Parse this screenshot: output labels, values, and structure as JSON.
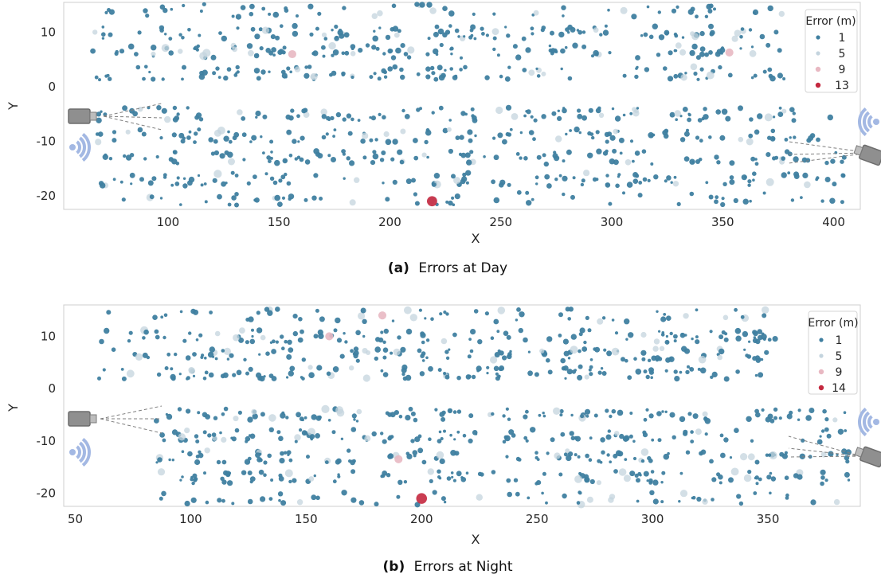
{
  "colors": {
    "err_low": "#3f7fa0",
    "err_mid": "#c4d4de",
    "err_pink": "#e8b8c2",
    "err_high": "#c4283f",
    "camera": "#8f8f8f",
    "wifi": "#a3b8e3"
  },
  "icons": [
    "camera-icon",
    "wifi-signal-icon"
  ],
  "chart_data": [
    {
      "type": "scatter",
      "caption_label": "(a)",
      "caption_text": "Errors at Day",
      "xlabel": "X",
      "ylabel": "Y",
      "xlim": [
        53,
        412
      ],
      "ylim": [
        -22.5,
        15.5
      ],
      "xticks": [
        100,
        150,
        200,
        250,
        300,
        350,
        400
      ],
      "yticks": [
        10,
        0,
        -10,
        -20
      ],
      "grid": false,
      "legend_position": "top-right",
      "legend": {
        "title": "Error (m)",
        "entries": [
          {
            "label": "1",
            "value": 1
          },
          {
            "label": "5",
            "value": 5
          },
          {
            "label": "9",
            "value": 9
          },
          {
            "label": "13",
            "value": 13
          }
        ]
      },
      "region_x": [
        65,
        405
      ],
      "lanes_y": [
        14,
        10,
        6.5,
        2.5,
        -5,
        -9,
        -13,
        -17,
        -20.5
      ],
      "notable_points": [
        {
          "x": 219,
          "y": -21,
          "error": 13
        },
        {
          "x": 156,
          "y": 6,
          "error": 9
        },
        {
          "x": 353,
          "y": 6.3,
          "error": 9
        }
      ]
    },
    {
      "type": "scatter",
      "caption_label": "(b)",
      "caption_text": "Errors at Night",
      "xlabel": "X",
      "ylabel": "Y",
      "xlim": [
        45,
        390
      ],
      "ylim": [
        -22.5,
        16
      ],
      "xticks": [
        50,
        100,
        150,
        200,
        250,
        300,
        350
      ],
      "yticks": [
        10,
        0,
        -10,
        -20
      ],
      "grid": false,
      "legend_position": "top-right",
      "legend": {
        "title": "Error (m)",
        "entries": [
          {
            "label": "1",
            "value": 1
          },
          {
            "label": "5",
            "value": 5
          },
          {
            "label": "9",
            "value": 9
          },
          {
            "label": "14",
            "value": 14
          }
        ]
      },
      "region_x": [
        58,
        385
      ],
      "lanes_y": [
        14,
        10,
        6.5,
        3,
        -5,
        -9,
        -13,
        -17,
        -21
      ],
      "notable_points": [
        {
          "x": 200,
          "y": -21,
          "error": 14
        },
        {
          "x": 190,
          "y": -13.5,
          "error": 9
        },
        {
          "x": 183,
          "y": 14,
          "error": 9
        },
        {
          "x": 160,
          "y": 10,
          "error": 9
        }
      ]
    }
  ]
}
